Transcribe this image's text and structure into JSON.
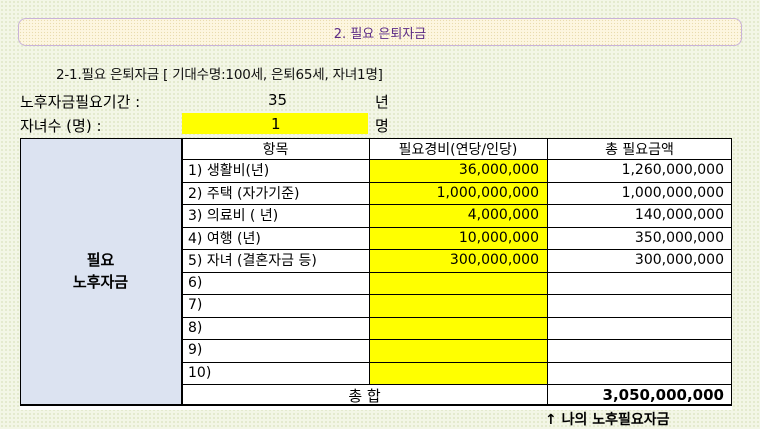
{
  "banner_title": "2. 필요 은퇴자금",
  "subtitle": "2-1.필요 은퇴자금 [ 기대수명:100세, 은퇴65세, 자녀1명]",
  "inputs": {
    "period_label": "노후자금필요기간 :",
    "period_value": "35",
    "period_unit": "년",
    "children_label": "자녀수 (명) :",
    "children_value": "1",
    "children_unit": "명"
  },
  "table": {
    "section_label_line1": "필요",
    "section_label_line2": "노후자금",
    "headers": {
      "item": "항목",
      "cost": "필요경비(연당/인당)",
      "total": "총 필요금액"
    },
    "rows": [
      {
        "item": "1) 생활비(년)",
        "cost": "36,000,000",
        "total": "1,260,000,000"
      },
      {
        "item": "2) 주택 (자가기준)",
        "cost": "1,000,000,000",
        "total": "1,000,000,000"
      },
      {
        "item": "3) 의료비 ( 년)",
        "cost": "4,000,000",
        "total": "140,000,000"
      },
      {
        "item": "4) 여행 (년)",
        "cost": "10,000,000",
        "total": "350,000,000"
      },
      {
        "item": "5) 자녀 (결혼자금 등)",
        "cost": "300,000,000",
        "total": "300,000,000"
      },
      {
        "item": "6)",
        "cost": "",
        "total": ""
      },
      {
        "item": "7)",
        "cost": "",
        "total": ""
      },
      {
        "item": "8)",
        "cost": "",
        "total": ""
      },
      {
        "item": "9)",
        "cost": "",
        "total": ""
      },
      {
        "item": "10)",
        "cost": "",
        "total": ""
      }
    ],
    "sum_label": "총  합",
    "sum_value": "3,050,000,000"
  },
  "footnote": "↑  나의 노후필요자금",
  "colors": {
    "highlight": "#ffff00",
    "label_fill": "#dce3f1",
    "banner_text": "#5b2a86"
  }
}
